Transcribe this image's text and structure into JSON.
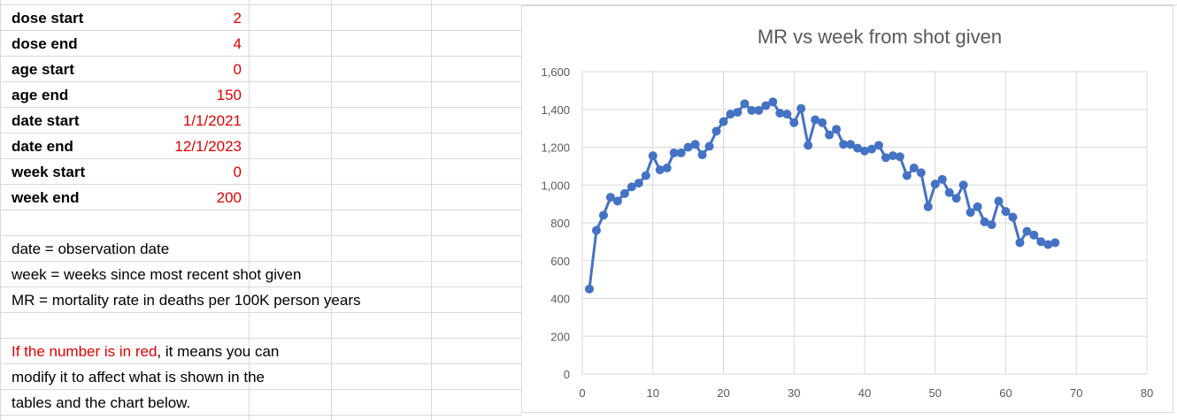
{
  "params": [
    {
      "label": "dose start",
      "value": "2",
      "value_color": "#e00000"
    },
    {
      "label": "dose end",
      "value": "4",
      "value_color": "#e00000"
    },
    {
      "label": "age start",
      "value": "0",
      "value_color": "#e00000"
    },
    {
      "label": "age end",
      "value": "150",
      "value_color": "#e00000"
    },
    {
      "label": "date start",
      "value": "1/1/2021",
      "value_color": "#e00000"
    },
    {
      "label": "date end",
      "value": "12/1/2023",
      "value_color": "#e00000"
    },
    {
      "label": "week start",
      "value": "0",
      "value_color": "#e00000"
    },
    {
      "label": "week end",
      "value": "200",
      "value_color": "#e00000"
    }
  ],
  "definitions": [
    "date = observation date",
    "week = weeks since most recent shot given",
    "MR = mortality rate in deaths per 100K person years"
  ],
  "note": {
    "red_part": "If the number is in red",
    "line1_rest": ", it means you can",
    "line2": "modify it to affect what is shown in the",
    "line3": "tables and the chart below."
  },
  "colors": {
    "accent_red": "#e00000",
    "series": "#4472c4",
    "grid": "#d9d9d9"
  },
  "chart_data": {
    "type": "line",
    "title": "MR vs week from shot given",
    "xlabel": "",
    "ylabel": "",
    "xlim": [
      0,
      80
    ],
    "ylim": [
      0,
      1600
    ],
    "x_ticks": [
      "0",
      "10",
      "20",
      "30",
      "40",
      "50",
      "60",
      "70",
      "80"
    ],
    "y_ticks": [
      "0",
      "200",
      "400",
      "600",
      "800",
      "1,000",
      "1,200",
      "1,400",
      "1,600"
    ],
    "grid": true,
    "legend": "none",
    "series": [
      {
        "x": [
          1,
          2,
          3,
          4,
          5,
          6,
          7,
          8,
          9,
          10,
          11,
          12,
          13,
          14,
          15,
          16,
          17,
          18,
          19,
          20,
          21,
          22,
          23,
          24,
          25,
          26,
          27,
          28,
          29,
          30,
          31,
          32,
          33,
          34,
          35,
          36,
          37,
          38,
          39,
          40,
          41,
          42,
          43,
          44,
          45,
          46,
          47,
          48,
          49,
          50,
          51,
          52,
          53,
          54,
          55,
          56,
          57,
          58,
          59,
          60,
          61,
          62,
          63,
          64,
          65,
          66,
          67
        ],
        "values": [
          450,
          760,
          840,
          935,
          915,
          955,
          990,
          1010,
          1050,
          1155,
          1080,
          1090,
          1170,
          1170,
          1200,
          1215,
          1160,
          1205,
          1285,
          1335,
          1375,
          1385,
          1430,
          1395,
          1395,
          1420,
          1440,
          1380,
          1375,
          1330,
          1405,
          1210,
          1345,
          1330,
          1265,
          1295,
          1215,
          1215,
          1195,
          1180,
          1190,
          1210,
          1145,
          1155,
          1150,
          1050,
          1090,
          1065,
          885,
          1005,
          1030,
          960,
          930,
          1000,
          855,
          885,
          805,
          790,
          915,
          860,
          830,
          695,
          755,
          735,
          700,
          685,
          695
        ]
      }
    ]
  }
}
